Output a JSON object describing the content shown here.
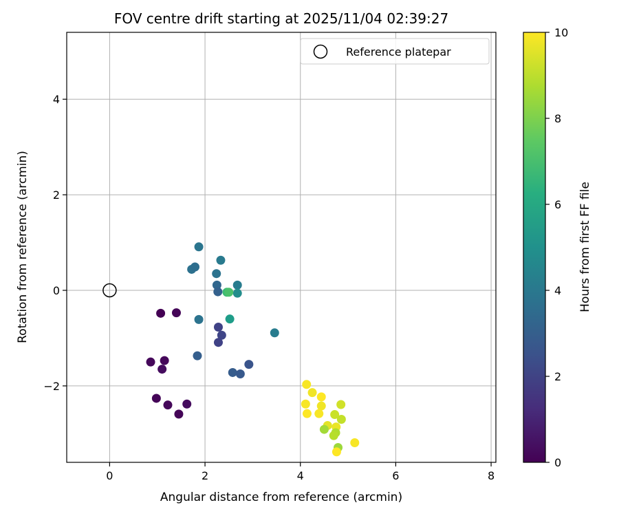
{
  "chart_data": {
    "type": "scatter",
    "title": "FOV centre drift starting at 2025/11/04 02:39:27",
    "xlabel": "Angular distance from reference (arcmin)",
    "ylabel": "Rotation from reference (arcmin)",
    "xlim": [
      -0.9,
      8.1
    ],
    "ylim": [
      -3.6,
      5.4
    ],
    "xticks": [
      0,
      2,
      4,
      6,
      8
    ],
    "yticks": [
      -2,
      0,
      2,
      4
    ],
    "grid": true,
    "legend": {
      "label": "Reference platepar",
      "placement": "top-right"
    },
    "reference_point": {
      "x": 0,
      "y": 0
    },
    "colorbar": {
      "label": "Hours from first FF file",
      "min": 0,
      "max": 10,
      "ticks": [
        0,
        2,
        4,
        6,
        8,
        10
      ],
      "colormap": "viridis"
    },
    "points": [
      {
        "x": 1.07,
        "y": -0.48,
        "hours": 0.0
      },
      {
        "x": 1.4,
        "y": -0.47,
        "hours": 0.1
      },
      {
        "x": 0.86,
        "y": -1.5,
        "hours": 0.2
      },
      {
        "x": 1.15,
        "y": -1.47,
        "hours": 0.2
      },
      {
        "x": 1.1,
        "y": -1.65,
        "hours": 0.3
      },
      {
        "x": 0.98,
        "y": -2.26,
        "hours": 0.1
      },
      {
        "x": 1.22,
        "y": -2.4,
        "hours": 0.2
      },
      {
        "x": 1.62,
        "y": -2.38,
        "hours": 0.3
      },
      {
        "x": 1.45,
        "y": -2.59,
        "hours": 0.1
      },
      {
        "x": 2.28,
        "y": -0.77,
        "hours": 2.0
      },
      {
        "x": 2.35,
        "y": -0.94,
        "hours": 2.1
      },
      {
        "x": 2.28,
        "y": -1.09,
        "hours": 2.0
      },
      {
        "x": 1.84,
        "y": -1.37,
        "hours": 3.0
      },
      {
        "x": 2.92,
        "y": -1.55,
        "hours": 2.6
      },
      {
        "x": 2.58,
        "y": -1.72,
        "hours": 2.9
      },
      {
        "x": 2.74,
        "y": -1.75,
        "hours": 2.8
      },
      {
        "x": 1.87,
        "y": -0.61,
        "hours": 3.8
      },
      {
        "x": 1.87,
        "y": 0.91,
        "hours": 3.9
      },
      {
        "x": 1.72,
        "y": 0.44,
        "hours": 3.7
      },
      {
        "x": 1.79,
        "y": 0.49,
        "hours": 3.6
      },
      {
        "x": 2.33,
        "y": 0.63,
        "hours": 4.1
      },
      {
        "x": 2.24,
        "y": 0.35,
        "hours": 3.8
      },
      {
        "x": 2.25,
        "y": 0.11,
        "hours": 3.3
      },
      {
        "x": 2.27,
        "y": -0.03,
        "hours": 3.1
      },
      {
        "x": 2.68,
        "y": 0.11,
        "hours": 4.2
      },
      {
        "x": 2.68,
        "y": -0.06,
        "hours": 4.9
      },
      {
        "x": 2.46,
        "y": -0.04,
        "hours": 6.8
      },
      {
        "x": 2.5,
        "y": -0.04,
        "hours": 7.1
      },
      {
        "x": 2.52,
        "y": -0.6,
        "hours": 5.5
      },
      {
        "x": 3.46,
        "y": -0.89,
        "hours": 4.2
      },
      {
        "x": 4.13,
        "y": -1.97,
        "hours": 9.9
      },
      {
        "x": 4.25,
        "y": -2.14,
        "hours": 9.8
      },
      {
        "x": 4.44,
        "y": -2.23,
        "hours": 10.0
      },
      {
        "x": 4.11,
        "y": -2.38,
        "hours": 9.9
      },
      {
        "x": 4.44,
        "y": -2.42,
        "hours": 9.8
      },
      {
        "x": 4.14,
        "y": -2.58,
        "hours": 10.0
      },
      {
        "x": 4.39,
        "y": -2.58,
        "hours": 9.9
      },
      {
        "x": 4.85,
        "y": -2.39,
        "hours": 9.3
      },
      {
        "x": 4.72,
        "y": -2.6,
        "hours": 9.2
      },
      {
        "x": 4.86,
        "y": -2.7,
        "hours": 9.1
      },
      {
        "x": 4.57,
        "y": -2.83,
        "hours": 9.6
      },
      {
        "x": 4.75,
        "y": -2.86,
        "hours": 9.7
      },
      {
        "x": 4.5,
        "y": -2.91,
        "hours": 8.6
      },
      {
        "x": 4.74,
        "y": -2.98,
        "hours": 8.8
      },
      {
        "x": 4.7,
        "y": -3.04,
        "hours": 8.9
      },
      {
        "x": 4.79,
        "y": -3.29,
        "hours": 8.5
      },
      {
        "x": 4.76,
        "y": -3.38,
        "hours": 10.0
      },
      {
        "x": 5.14,
        "y": -3.19,
        "hours": 9.9
      }
    ]
  }
}
